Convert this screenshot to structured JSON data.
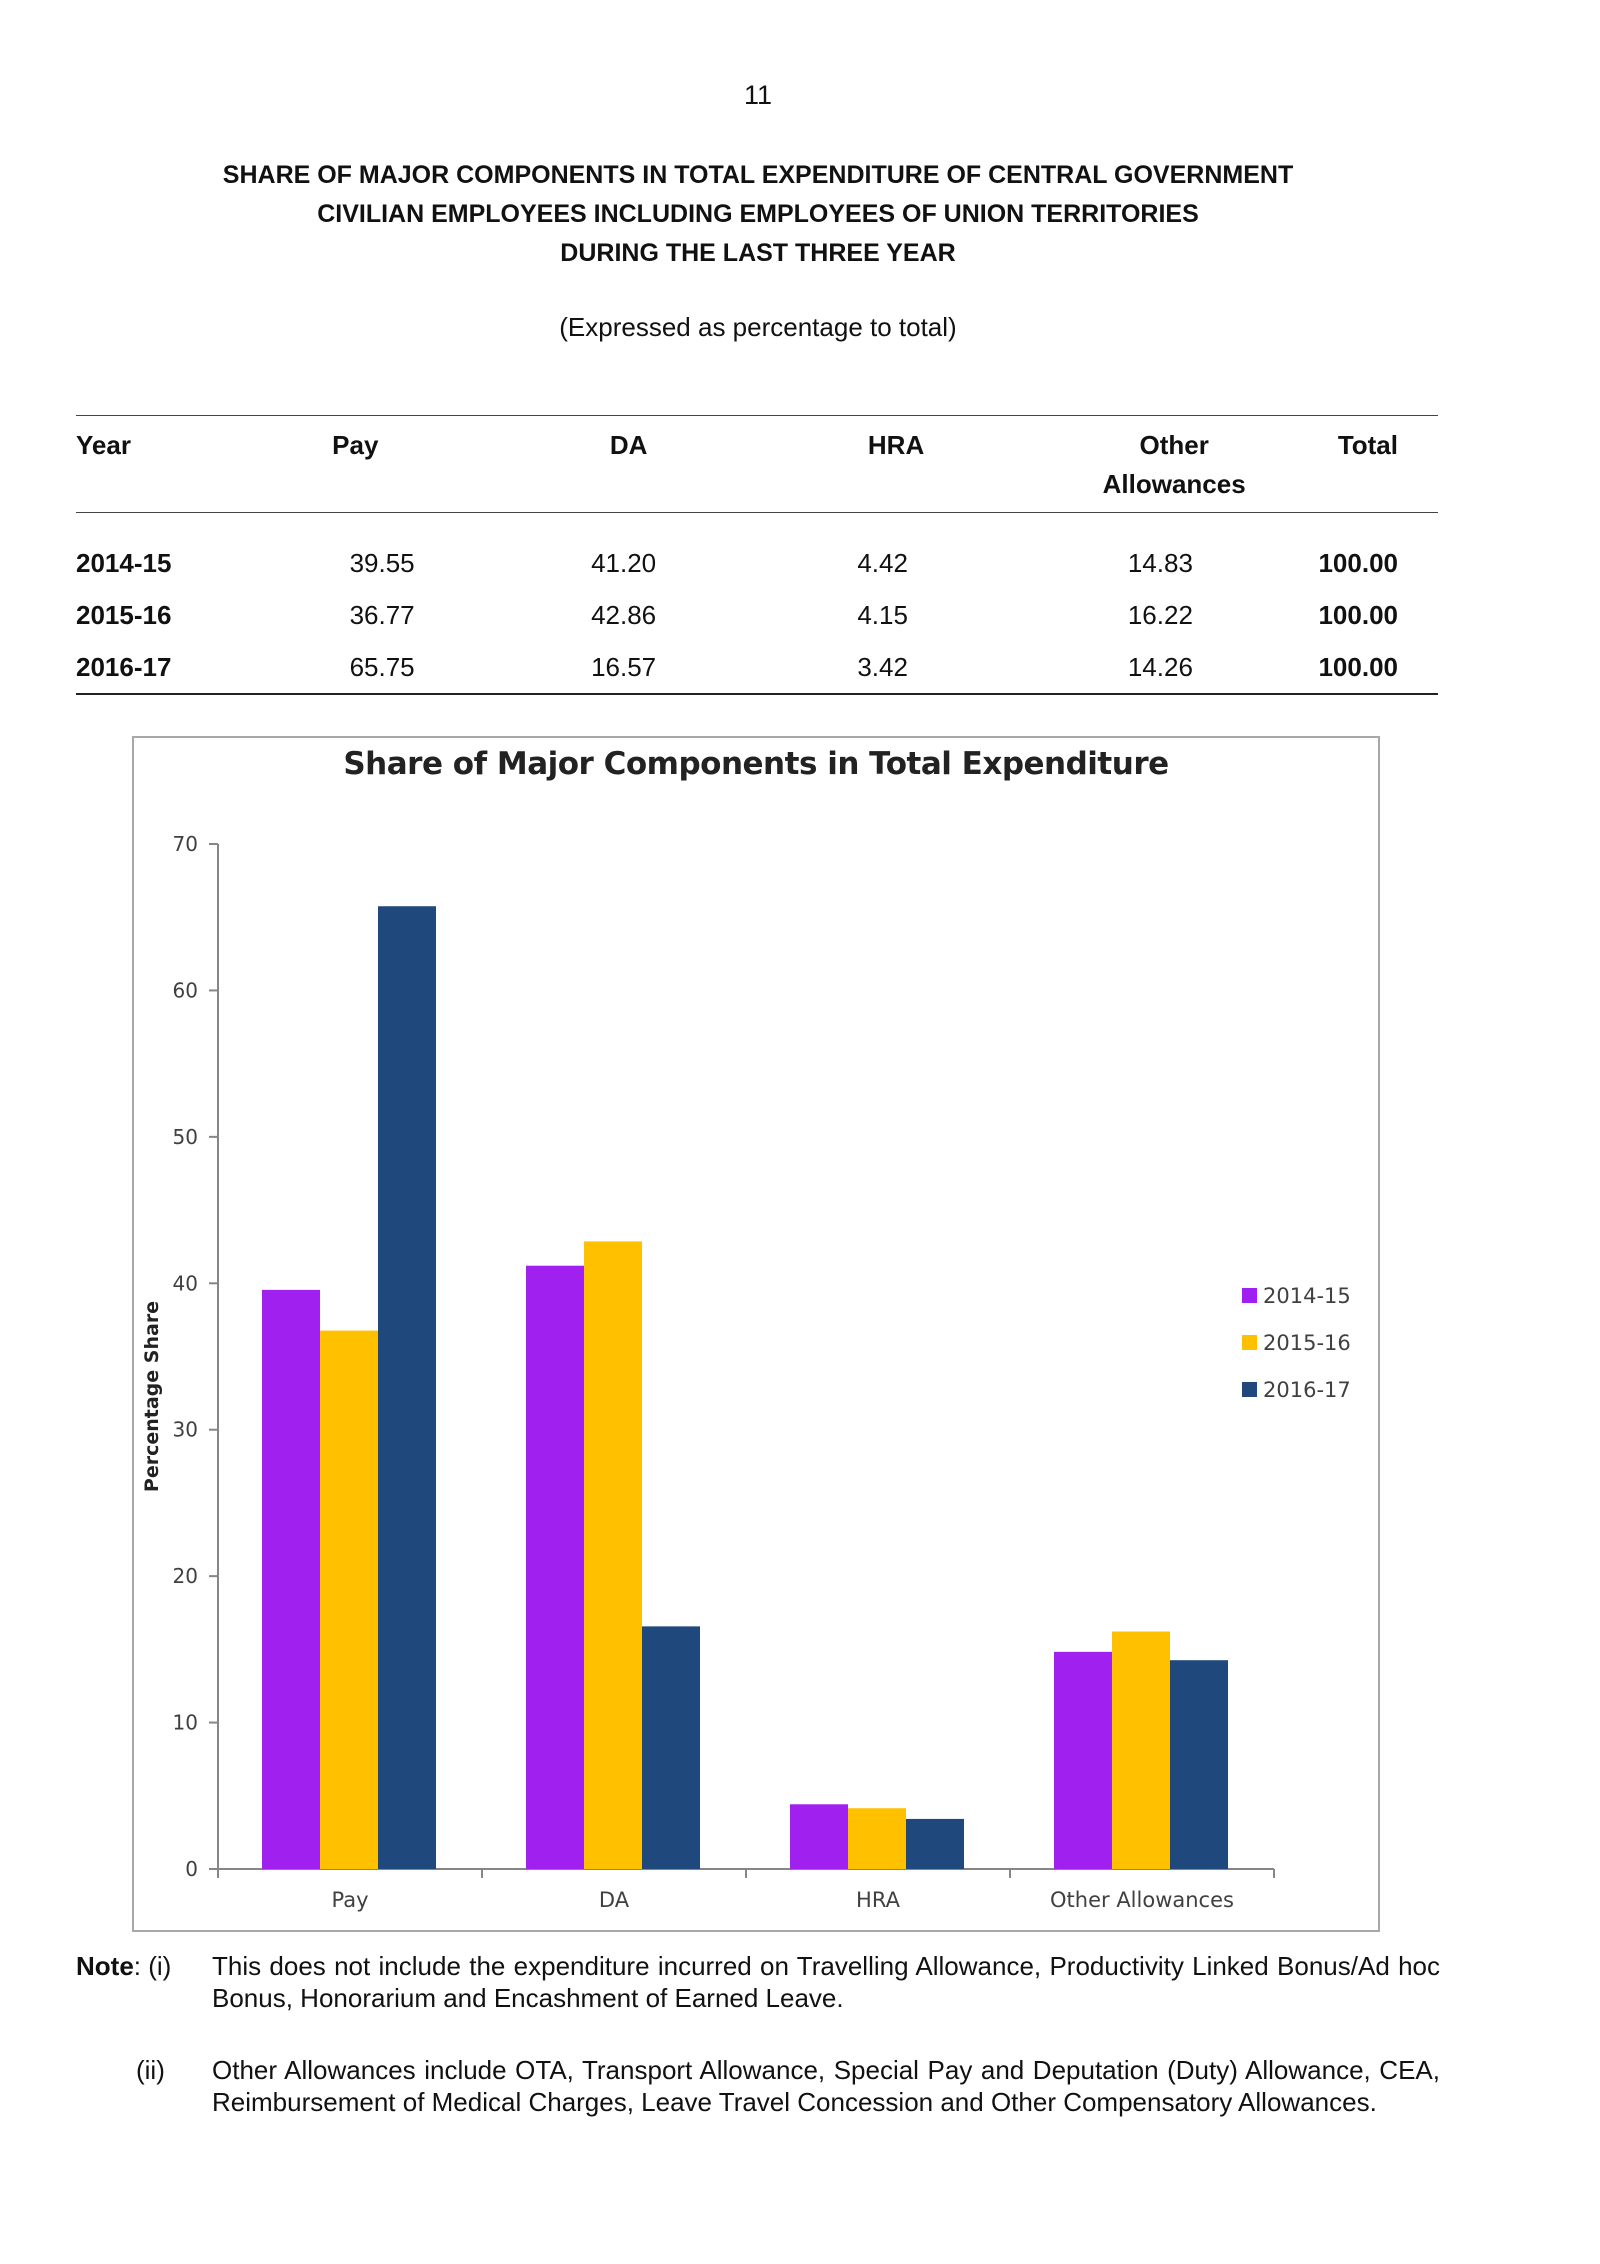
{
  "page_number": "11",
  "title_lines": [
    "SHARE OF MAJOR COMPONENTS IN TOTAL EXPENDITURE OF CENTRAL GOVERNMENT",
    "CIVILIAN EMPLOYEES INCLUDING EMPLOYEES OF UNION  TERRITORIES",
    "DURING THE LAST THREE YEAR"
  ],
  "subtitle": "(Expressed as percentage to total)",
  "table": {
    "headers": {
      "year": "Year",
      "pay": "Pay",
      "da": "DA",
      "hra": "HRA",
      "other_line1": "Other",
      "other_line2": "Allowances",
      "total": "Total"
    },
    "rows": [
      {
        "year": "2014-15",
        "pay": "39.55",
        "da": "41.20",
        "hra": "4.42",
        "other": "14.83",
        "total": "100.00"
      },
      {
        "year": "2015-16",
        "pay": "36.77",
        "da": "42.86",
        "hra": "4.15",
        "other": "16.22",
        "total": "100.00"
      },
      {
        "year": "2016-17",
        "pay": "65.75",
        "da": "16.57",
        "hra": "3.42",
        "other": "14.26",
        "total": "100.00"
      }
    ]
  },
  "chart_data": {
    "type": "bar",
    "title": "Share of Major Components in Total Expenditure",
    "xlabel": "",
    "ylabel": "Percentage Share",
    "categories": [
      "Pay",
      "DA",
      "HRA",
      "Other Allowances"
    ],
    "series": [
      {
        "name": "2014-15",
        "color": "#a020f0",
        "values": [
          39.55,
          41.2,
          4.42,
          14.83
        ]
      },
      {
        "name": "2015-16",
        "color": "#ffc000",
        "values": [
          36.77,
          42.86,
          4.15,
          16.22
        ]
      },
      {
        "name": "2016-17",
        "color": "#1f497d",
        "values": [
          65.75,
          16.57,
          3.42,
          14.26
        ]
      }
    ],
    "ylim": [
      0,
      70
    ],
    "yticks": [
      0,
      10,
      20,
      30,
      40,
      50,
      60,
      70
    ],
    "grid": false,
    "legend": "right"
  },
  "notes": {
    "label_bold": "Note",
    "marker_i": ": (i)",
    "text_i": "This does not include the expenditure incurred on Travelling Allowance, Productivity Linked Bonus/Ad hoc Bonus, Honorarium and Encashment of Earned Leave.",
    "marker_ii": "(ii)",
    "text_ii": "Other Allowances include OTA, Transport Allowance, Special Pay and Deputation (Duty) Allowance, CEA, Reimbursement of Medical Charges, Leave Travel Concession and Other Compensatory Allowances."
  }
}
